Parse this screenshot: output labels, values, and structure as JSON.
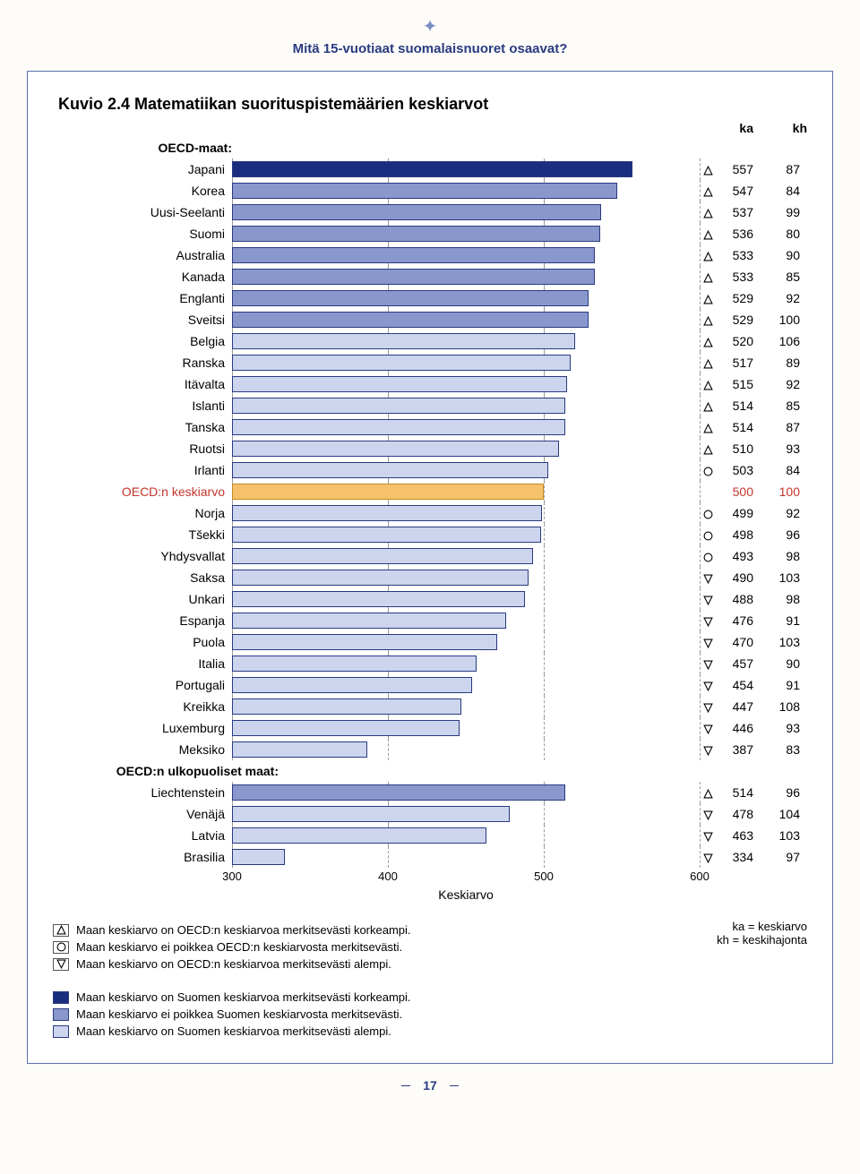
{
  "doc_header": "Mitä 15-vuotiaat suomalaisnuoret osaavat?",
  "chart_title": "Kuvio 2.4 Matematiikan suorituspistemäärien keskiarvot",
  "col_ka": "ka",
  "col_kh": "kh",
  "section_oecd": "OECD-maat:",
  "section_non_oecd": "OECD:n ulkopuoliset maat:",
  "avg_row_label": "OECD:n keskiarvo",
  "avg_row_color": "#c4352b",
  "axis_label": "Keskiarvo",
  "page_number": "17",
  "axis": {
    "min": 300,
    "max": 600,
    "ticks": [
      300,
      400,
      500,
      600
    ]
  },
  "colors": {
    "bar_default": "#cdd5ee",
    "bar_fin_above": "#1a2d7f",
    "bar_fin_equal": "#8a97cc",
    "bar_oecd_avg": "#f5c26b",
    "bar_border": "#2a3a80",
    "grid": "#999999",
    "frame": "#5a6fb0",
    "title_color": "#2a3a80"
  },
  "symbols": {
    "above": "△",
    "equal": "○",
    "below": "▽"
  },
  "oecd": [
    {
      "label": "Japani",
      "ka": 557,
      "kh": 87,
      "sym": "above",
      "fin": "above"
    },
    {
      "label": "Korea",
      "ka": 547,
      "kh": 84,
      "sym": "above",
      "fin": "equal"
    },
    {
      "label": "Uusi-Seelanti",
      "ka": 537,
      "kh": 99,
      "sym": "above",
      "fin": "equal"
    },
    {
      "label": "Suomi",
      "ka": 536,
      "kh": 80,
      "sym": "above",
      "fin": "equal"
    },
    {
      "label": "Australia",
      "ka": 533,
      "kh": 90,
      "sym": "above",
      "fin": "equal"
    },
    {
      "label": "Kanada",
      "ka": 533,
      "kh": 85,
      "sym": "above",
      "fin": "equal"
    },
    {
      "label": "Englanti",
      "ka": 529,
      "kh": 92,
      "sym": "above",
      "fin": "equal"
    },
    {
      "label": "Sveitsi",
      "ka": 529,
      "kh": 100,
      "sym": "above",
      "fin": "equal"
    },
    {
      "label": "Belgia",
      "ka": 520,
      "kh": 106,
      "sym": "above",
      "fin": "below"
    },
    {
      "label": "Ranska",
      "ka": 517,
      "kh": 89,
      "sym": "above",
      "fin": "below"
    },
    {
      "label": "Itävalta",
      "ka": 515,
      "kh": 92,
      "sym": "above",
      "fin": "below"
    },
    {
      "label": "Islanti",
      "ka": 514,
      "kh": 85,
      "sym": "above",
      "fin": "below"
    },
    {
      "label": "Tanska",
      "ka": 514,
      "kh": 87,
      "sym": "above",
      "fin": "below"
    },
    {
      "label": "Ruotsi",
      "ka": 510,
      "kh": 93,
      "sym": "above",
      "fin": "below"
    },
    {
      "label": "Irlanti",
      "ka": 503,
      "kh": 84,
      "sym": "equal",
      "fin": "below"
    }
  ],
  "avg": {
    "ka": 500,
    "kh": 100
  },
  "oecd2": [
    {
      "label": "Norja",
      "ka": 499,
      "kh": 92,
      "sym": "equal",
      "fin": "below"
    },
    {
      "label": "Tšekki",
      "ka": 498,
      "kh": 96,
      "sym": "equal",
      "fin": "below"
    },
    {
      "label": "Yhdysvallat",
      "ka": 493,
      "kh": 98,
      "sym": "equal",
      "fin": "below"
    },
    {
      "label": "Saksa",
      "ka": 490,
      "kh": 103,
      "sym": "below",
      "fin": "below"
    },
    {
      "label": "Unkari",
      "ka": 488,
      "kh": 98,
      "sym": "below",
      "fin": "below"
    },
    {
      "label": "Espanja",
      "ka": 476,
      "kh": 91,
      "sym": "below",
      "fin": "below"
    },
    {
      "label": "Puola",
      "ka": 470,
      "kh": 103,
      "sym": "below",
      "fin": "below"
    },
    {
      "label": "Italia",
      "ka": 457,
      "kh": 90,
      "sym": "below",
      "fin": "below"
    },
    {
      "label": "Portugali",
      "ka": 454,
      "kh": 91,
      "sym": "below",
      "fin": "below"
    },
    {
      "label": "Kreikka",
      "ka": 447,
      "kh": 108,
      "sym": "below",
      "fin": "below"
    },
    {
      "label": "Luxemburg",
      "ka": 446,
      "kh": 93,
      "sym": "below",
      "fin": "below"
    },
    {
      "label": "Meksiko",
      "ka": 387,
      "kh": 83,
      "sym": "below",
      "fin": "below"
    }
  ],
  "non_oecd": [
    {
      "label": "Liechtenstein",
      "ka": 514,
      "kh": 96,
      "sym": "above",
      "fin": "equal"
    },
    {
      "label": "Venäjä",
      "ka": 478,
      "kh": 104,
      "sym": "below",
      "fin": "below"
    },
    {
      "label": "Latvia",
      "ka": 463,
      "kh": 103,
      "sym": "below",
      "fin": "below"
    },
    {
      "label": "Brasilia",
      "ka": 334,
      "kh": 97,
      "sym": "below",
      "fin": "below"
    }
  ],
  "legend_sym": [
    {
      "sym": "above",
      "text": "Maan keskiarvo on OECD:n keskiarvoa merkitsevästi korkeampi."
    },
    {
      "sym": "equal",
      "text": "Maan keskiarvo ei poikkea OECD:n keskiarvosta merkitsevästi."
    },
    {
      "sym": "below",
      "text": "Maan keskiarvo on OECD:n keskiarvoa merkitsevästi alempi."
    }
  ],
  "legend_fin": [
    {
      "cls": "fin-above",
      "text": "Maan keskiarvo on Suomen keskiarvoa merkitsevästi korkeampi."
    },
    {
      "cls": "fin-equal",
      "text": "Maan keskiarvo ei poikkea Suomen keskiarvosta merkitsevästi."
    },
    {
      "cls": "",
      "text": "Maan keskiarvo on Suomen keskiarvoa merkitsevästi alempi."
    }
  ],
  "glossary": {
    "ka": "ka = keskiarvo",
    "kh": "kh = keskihajonta"
  }
}
